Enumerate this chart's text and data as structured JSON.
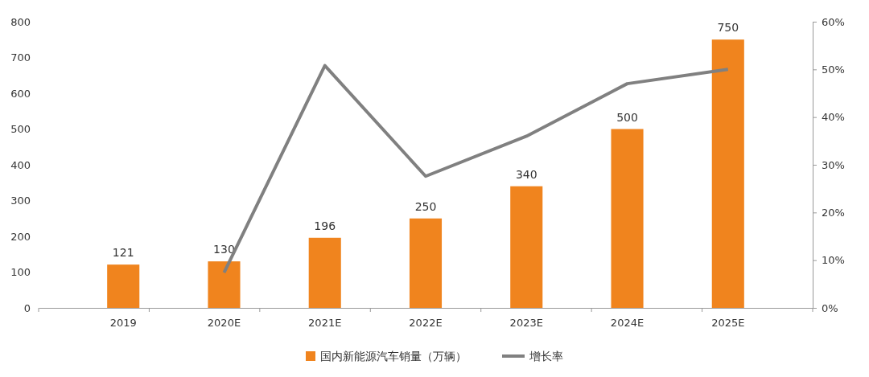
{
  "chart_data": {
    "type": "bar",
    "categories": [
      "2019",
      "2020E",
      "2021E",
      "2022E",
      "2023E",
      "2024E",
      "2025E"
    ],
    "series": [
      {
        "name": "国内新能源汽车销量（万辆）",
        "color": "#f0841e",
        "values": [
          121,
          130,
          196,
          250,
          340,
          500,
          750
        ],
        "value_labels": [
          "121",
          "130",
          "196",
          "250",
          "340",
          "500",
          "750"
        ]
      },
      {
        "name": "增长率",
        "type": "line",
        "axis": "y2",
        "color": "#808080",
        "values": [
          null,
          7.4,
          50.8,
          27.6,
          36,
          47,
          50
        ]
      }
    ],
    "ylim": [
      0,
      800
    ],
    "yticks": [
      0,
      100,
      200,
      300,
      400,
      500,
      600,
      700,
      800
    ],
    "y2lim": [
      0,
      60
    ],
    "y2ticks": [
      {
        "value": 0,
        "label": "0%"
      },
      {
        "value": 10,
        "label": "10%"
      },
      {
        "value": 20,
        "label": "20%"
      },
      {
        "value": 30,
        "label": "30%"
      },
      {
        "value": 40,
        "label": "40%"
      },
      {
        "value": 50,
        "label": "50%"
      },
      {
        "value": 60,
        "label": "60%"
      }
    ],
    "grid": false,
    "legend": "bottom",
    "marker": "none",
    "line_style": "solid"
  }
}
